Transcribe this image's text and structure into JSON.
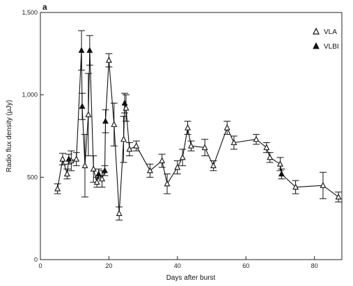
{
  "chart_data": {
    "type": "scatter",
    "panel_label": "a",
    "xlabel": "Days after burst",
    "ylabel": "Radio flux density (µJy)",
    "xlim": [
      0,
      88
    ],
    "ylim": [
      0,
      1500
    ],
    "xticks": [
      0,
      20,
      40,
      60,
      80
    ],
    "yticks": [
      0,
      500,
      1000,
      1500
    ],
    "ytick_labels": [
      "0",
      "500",
      "1,000",
      "1,500"
    ],
    "legend_position": "top-right",
    "connected": true,
    "series": [
      {
        "name": "VLA",
        "marker": "open-triangle",
        "points": [
          {
            "x": 5.0,
            "y": 430,
            "err": 30
          },
          {
            "x": 6.5,
            "y": 610,
            "err": 35
          },
          {
            "x": 7.8,
            "y": 520,
            "err": 30
          },
          {
            "x": 9.0,
            "y": 600,
            "err": 60
          },
          {
            "x": 10.5,
            "y": 610,
            "err": 40
          },
          {
            "x": 13.0,
            "y": 570,
            "err": 190
          },
          {
            "x": 14.0,
            "y": 880,
            "err": 250
          },
          {
            "x": 15.5,
            "y": 550,
            "err": 80
          },
          {
            "x": 16.5,
            "y": 470,
            "err": 30
          },
          {
            "x": 18.0,
            "y": 490,
            "err": 50
          },
          {
            "x": 20.0,
            "y": 1210,
            "err": 40
          },
          {
            "x": 21.5,
            "y": 820,
            "err": 130
          },
          {
            "x": 23.0,
            "y": 280,
            "err": 40
          },
          {
            "x": 24.3,
            "y": 730,
            "err": 140
          },
          {
            "x": 25.0,
            "y": 920,
            "err": 80
          },
          {
            "x": 26.0,
            "y": 670,
            "err": 40
          },
          {
            "x": 28.0,
            "y": 690,
            "err": 30
          },
          {
            "x": 32.0,
            "y": 540,
            "err": 40
          },
          {
            "x": 35.5,
            "y": 600,
            "err": 40
          },
          {
            "x": 37.0,
            "y": 460,
            "err": 60
          },
          {
            "x": 40.0,
            "y": 560,
            "err": 40
          },
          {
            "x": 41.5,
            "y": 620,
            "err": 50
          },
          {
            "x": 43.0,
            "y": 800,
            "err": 40
          },
          {
            "x": 44.0,
            "y": 690,
            "err": 30
          },
          {
            "x": 48.0,
            "y": 680,
            "err": 50
          },
          {
            "x": 50.5,
            "y": 570,
            "err": 30
          },
          {
            "x": 54.5,
            "y": 800,
            "err": 40
          },
          {
            "x": 56.5,
            "y": 710,
            "err": 40
          },
          {
            "x": 63.0,
            "y": 730,
            "err": 30
          },
          {
            "x": 66.0,
            "y": 680,
            "err": 30
          },
          {
            "x": 67.0,
            "y": 620,
            "err": 30
          },
          {
            "x": 70.0,
            "y": 580,
            "err": 40
          },
          {
            "x": 74.5,
            "y": 440,
            "err": 40
          },
          {
            "x": 82.5,
            "y": 450,
            "err": 80
          },
          {
            "x": 87.0,
            "y": 380,
            "err": 30
          }
        ]
      },
      {
        "name": "VLBI",
        "marker": "filled-triangle",
        "points": [
          {
            "x": 8.3,
            "y": 610,
            "err": 30
          },
          {
            "x": 12.0,
            "y": 1270,
            "err": 120
          },
          {
            "x": 12.2,
            "y": 930,
            "err": 80
          },
          {
            "x": 14.4,
            "y": 1270,
            "err": 90
          },
          {
            "x": 17.0,
            "y": 520,
            "err": 30
          },
          {
            "x": 18.8,
            "y": 540,
            "err": 30
          },
          {
            "x": 19.0,
            "y": 840,
            "err": 70
          },
          {
            "x": 24.6,
            "y": 950,
            "err": 60
          },
          {
            "x": 70.4,
            "y": 520,
            "err": 30
          }
        ]
      }
    ]
  }
}
